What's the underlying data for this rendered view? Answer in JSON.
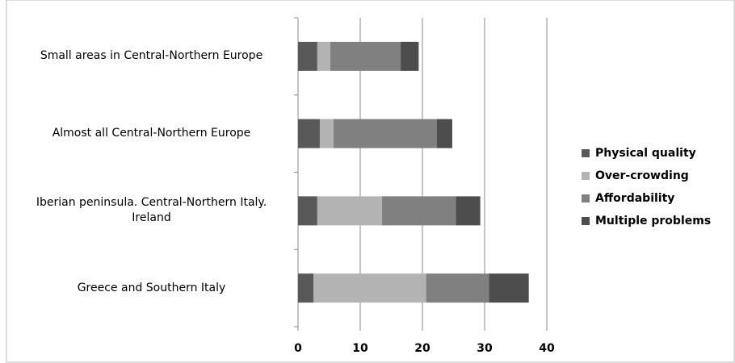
{
  "chart_data": {
    "type": "stacked-barh",
    "categories": [
      "Small areas in Central-Northern Europe",
      "Almost all Central-Northern Europe",
      "Iberian peninsula. Central-Northern Italy. Ireland",
      "Greece and Southern Italy"
    ],
    "series": [
      {
        "name": "Physical quality",
        "color": "#595959",
        "values": [
          3.1,
          3.5,
          3.1,
          2.5
        ]
      },
      {
        "name": "Over-crowding",
        "color": "#b3b3b3",
        "values": [
          2.1,
          2.2,
          10.4,
          18.1
        ]
      },
      {
        "name": "Affordability",
        "color": "#808080",
        "values": [
          11.3,
          16.6,
          11.9,
          10.1
        ]
      },
      {
        "name": "Multiple problems",
        "color": "#4d4d4d",
        "values": [
          2.9,
          2.5,
          3.9,
          6.4
        ]
      }
    ],
    "xlim": [
      0,
      40
    ],
    "xticks": [
      0,
      10,
      20,
      30,
      40
    ],
    "grid": true,
    "legend": "right"
  }
}
